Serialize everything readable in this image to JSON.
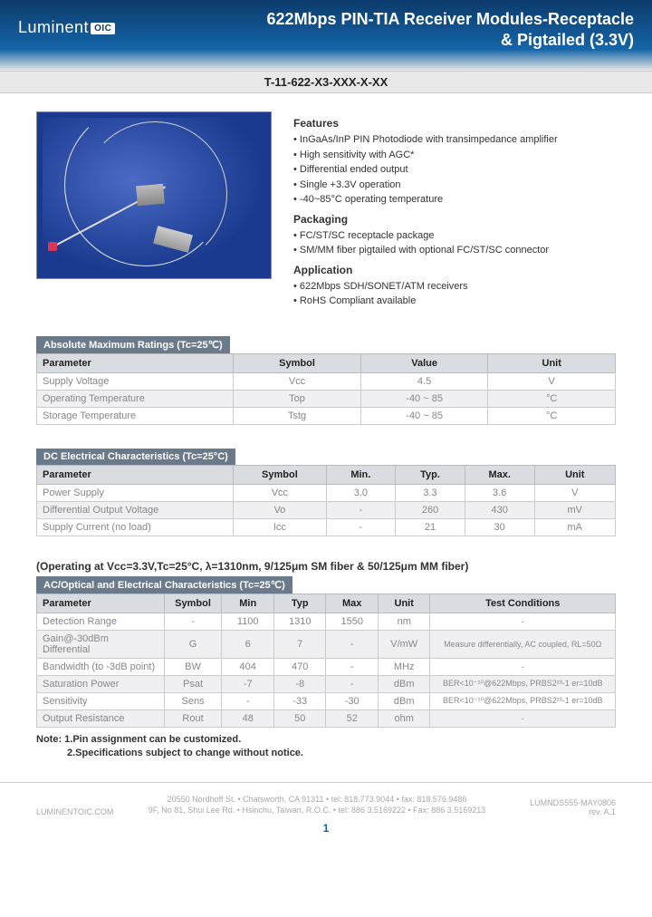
{
  "brand": {
    "name": "Luminent",
    "suffix": "OIC"
  },
  "title_line1": "622Mbps PIN-TIA Receiver Modules-Receptacle",
  "title_line2": "& Pigtailed (3.3V)",
  "partnum": "T-11-622-X3-XXX-X-XX",
  "features": {
    "heading": "Features",
    "items": [
      "InGaAs/InP PIN Photodiode with transimpedance amplifier",
      "High sensitivity with AGC*",
      "Differential ended output",
      "Single +3.3V operation",
      "-40~85°C operating temperature"
    ]
  },
  "packaging": {
    "heading": "Packaging",
    "items": [
      "FC/ST/SC receptacle package",
      "SM/MM fiber pigtailed with optional FC/ST/SC connector"
    ]
  },
  "application": {
    "heading": "Application",
    "items": [
      "622Mbps SDH/SONET/ATM receivers",
      "RoHS Compliant available"
    ]
  },
  "table1": {
    "title": "Absolute Maximum Ratings (Tc=25℃)",
    "columns": [
      "Parameter",
      "Symbol",
      "Value",
      "Unit"
    ],
    "rows": [
      [
        "Supply Voltage",
        "Vcc",
        "4.5",
        "V"
      ],
      [
        "Operating Temperature",
        "Top",
        "-40 ~ 85",
        "°C"
      ],
      [
        "Storage Temperature",
        "Tstg",
        "-40 ~ 85",
        "°C"
      ]
    ],
    "col_widths": [
      "34%",
      "22%",
      "22%",
      "22%"
    ]
  },
  "table2": {
    "title": "DC Electrical Characteristics (Tc=25°C)",
    "columns": [
      "Parameter",
      "Symbol",
      "Min.",
      "Typ.",
      "Max.",
      "Unit"
    ],
    "rows": [
      [
        "Power Supply",
        "Vcc",
        "3.0",
        "3.3",
        "3.6",
        "V"
      ],
      [
        "Differential Output Voltage",
        "Vo",
        "-",
        "260",
        "430",
        "mV"
      ],
      [
        "Supply Current (no load)",
        "Icc",
        "-",
        "21",
        "30",
        "mA"
      ]
    ],
    "col_widths": [
      "34%",
      "16%",
      "12%",
      "12%",
      "12%",
      "14%"
    ]
  },
  "operating_note": "(Operating at Vcc=3.3V,Tc=25°C, λ=1310nm, 9/125μm SM fiber & 50/125μm MM fiber)",
  "table3": {
    "title": "AC/Optical and Electrical Characteristics  (Tc=25℃)",
    "columns": [
      "Parameter",
      "Symbol",
      "Min",
      "Typ",
      "Max",
      "Unit",
      "Test Conditions"
    ],
    "rows": [
      [
        "Detection Range",
        "-",
        "1100",
        "1310",
        "1550",
        "nm",
        "-"
      ],
      [
        "Gain@-30dBm Differential",
        "G",
        "6",
        "7",
        "-",
        "V/mW",
        "Measure differentially, AC coupled, RL=50Ω"
      ],
      [
        "Bandwidth (to -3dB point)",
        "BW",
        "404",
        "470",
        "-",
        "MHz",
        "-"
      ],
      [
        "Saturation Power",
        "Psat",
        "-7",
        "-8",
        "-",
        "dBm",
        "BER<10⁻¹⁰@622Mbps, PRBS2²³-1 er=10dB"
      ],
      [
        "Sensitivity",
        "Sens",
        "-",
        "-33",
        "-30",
        "dBm",
        "BER<10⁻¹⁰@622Mbps, PRBS2²³-1 er=10dB"
      ],
      [
        "Output Resistance",
        "Rout",
        "48",
        "50",
        "52",
        "ohm",
        "-"
      ]
    ],
    "col_widths": [
      "22%",
      "10%",
      "9%",
      "9%",
      "9%",
      "9%",
      "32%"
    ]
  },
  "notes": {
    "line1": "Note: 1.Pin assignment can be customized.",
    "line2": "2.Specifications subject to change without notice."
  },
  "footer": {
    "left": "LUMINENTOIC.COM",
    "mid1": "20550 Nordhoff St. • Chatsworth, CA  91311 • tel: 818.773.9044 • fax: 818.576.9486",
    "mid2": "9F, No 81, Shui Lee Rd. • Hsinchu, Taiwan, R.O.C. • tel: 886 3.5169222 • Fax: 886 3.5169213",
    "right1": "LUMNDS555-MAY0806",
    "right2": "rev. A.1"
  },
  "pagenum": "1",
  "colors": {
    "header_gradient_top": "#0b3a6b",
    "header_gradient_mid": "#1565a8",
    "section_title_bg": "#6b7a8a",
    "th_bg": "#d9dde2",
    "row_alt_bg": "#f0f0f2",
    "photo_bg": "#1a3a8f"
  }
}
